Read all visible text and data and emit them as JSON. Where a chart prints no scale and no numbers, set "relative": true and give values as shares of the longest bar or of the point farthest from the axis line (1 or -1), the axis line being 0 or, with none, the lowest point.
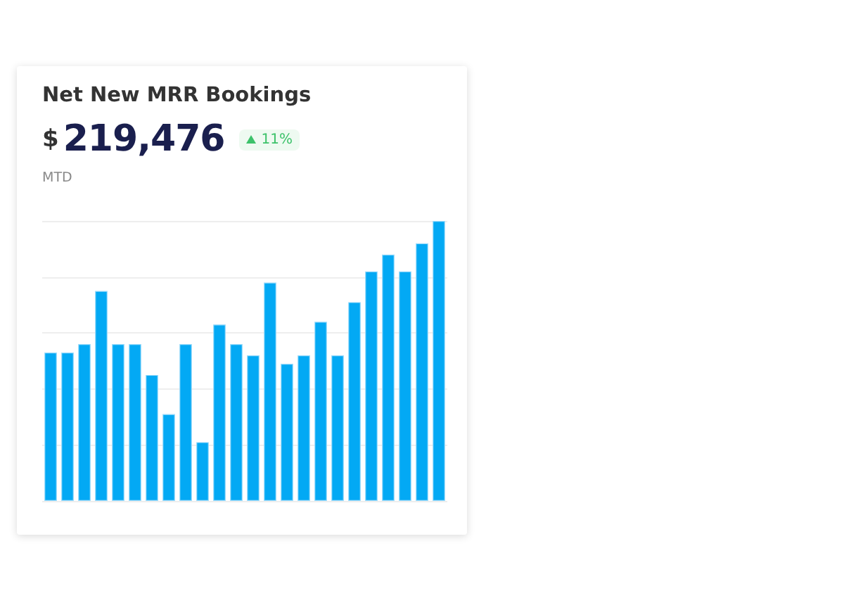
{
  "chart_data": {
    "type": "bar",
    "title": "Net New MRR Bookings",
    "annotations": [
      "$",
      "219,476",
      "11%",
      "MTD"
    ],
    "categories": [
      null,
      null,
      null,
      null,
      null,
      null,
      null,
      null,
      null,
      null,
      null,
      null,
      null,
      null,
      null,
      null,
      null,
      null,
      null,
      null,
      null,
      null,
      null,
      null
    ],
    "values": [
      0.53,
      0.53,
      0.56,
      0.75,
      0.56,
      0.56,
      0.45,
      0.31,
      0.56,
      0.21,
      0.63,
      0.56,
      0.52,
      0.78,
      0.49,
      0.52,
      0.64,
      0.52,
      0.71,
      0.82,
      0.88,
      0.82,
      0.92,
      1
    ],
    "color": "#03a9f4",
    "relative": true,
    "grid": "y"
  }
}
